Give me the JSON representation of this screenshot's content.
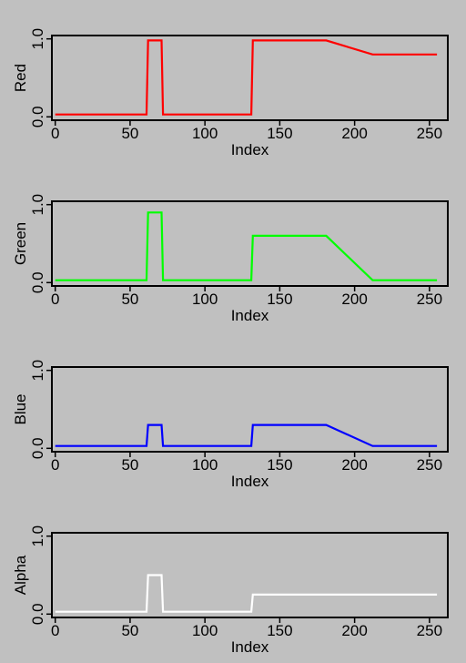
{
  "chart_data": [
    {
      "type": "line",
      "xlabel": "Index",
      "ylabel": "Red",
      "color": "#ff0000",
      "xlim": [
        0,
        260
      ],
      "ylim": [
        0.0,
        1.0
      ],
      "xticks": [
        "0",
        "50",
        "100",
        "150",
        "200",
        "250"
      ],
      "xtick_values": [
        0,
        50,
        100,
        150,
        200,
        250
      ],
      "yticks": [
        "0.0",
        "1.0"
      ],
      "ytick_values": [
        0.0,
        1.0
      ],
      "grid": false,
      "x": [
        0,
        61,
        62,
        71,
        72,
        131,
        132,
        181,
        212,
        255
      ],
      "y": [
        0.03,
        0.03,
        0.98,
        0.98,
        0.03,
        0.03,
        0.98,
        0.98,
        0.8,
        0.8
      ]
    },
    {
      "type": "line",
      "xlabel": "Index",
      "ylabel": "Green",
      "color": "#00ff00",
      "xlim": [
        0,
        260
      ],
      "ylim": [
        0.0,
        1.0
      ],
      "xticks": [
        "0",
        "50",
        "100",
        "150",
        "200",
        "250"
      ],
      "xtick_values": [
        0,
        50,
        100,
        150,
        200,
        250
      ],
      "yticks": [
        "0.0",
        "1.0"
      ],
      "ytick_values": [
        0.0,
        1.0
      ],
      "grid": false,
      "x": [
        0,
        61,
        62,
        71,
        72,
        131,
        132,
        181,
        212,
        255
      ],
      "y": [
        0.03,
        0.03,
        0.9,
        0.9,
        0.03,
        0.03,
        0.6,
        0.6,
        0.03,
        0.03
      ]
    },
    {
      "type": "line",
      "xlabel": "Index",
      "ylabel": "Blue",
      "color": "#0000ff",
      "xlim": [
        0,
        260
      ],
      "ylim": [
        0.0,
        1.0
      ],
      "xticks": [
        "0",
        "50",
        "100",
        "150",
        "200",
        "250"
      ],
      "xtick_values": [
        0,
        50,
        100,
        150,
        200,
        250
      ],
      "yticks": [
        "0.0",
        "1.0"
      ],
      "ytick_values": [
        0.0,
        1.0
      ],
      "grid": false,
      "x": [
        0,
        61,
        62,
        71,
        72,
        131,
        132,
        181,
        212,
        255
      ],
      "y": [
        0.03,
        0.03,
        0.3,
        0.3,
        0.03,
        0.03,
        0.3,
        0.3,
        0.03,
        0.03
      ]
    },
    {
      "type": "line",
      "xlabel": "Index",
      "ylabel": "Alpha",
      "color": "#ffffff",
      "xlim": [
        0,
        260
      ],
      "ylim": [
        0.0,
        1.0
      ],
      "xticks": [
        "0",
        "50",
        "100",
        "150",
        "200",
        "250"
      ],
      "xtick_values": [
        0,
        50,
        100,
        150,
        200,
        250
      ],
      "yticks": [
        "0.0",
        "1.0"
      ],
      "ytick_values": [
        0.0,
        1.0
      ],
      "grid": false,
      "x": [
        0,
        61,
        62,
        71,
        72,
        131,
        132,
        255
      ],
      "y": [
        0.03,
        0.03,
        0.5,
        0.5,
        0.03,
        0.03,
        0.25,
        0.25
      ]
    }
  ]
}
